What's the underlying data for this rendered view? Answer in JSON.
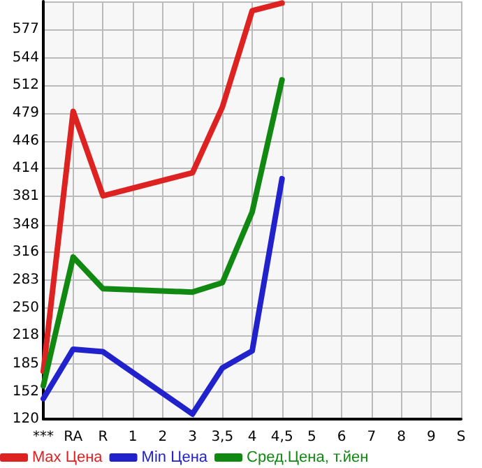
{
  "chart_data": {
    "type": "line",
    "categories": [
      "***",
      "RA",
      "R",
      "1",
      "2",
      "3",
      "3,5",
      "4",
      "4,5",
      "5",
      "6",
      "7",
      "8",
      "9",
      "S"
    ],
    "series": [
      {
        "name": "Max Цена",
        "color": "#dd2222",
        "values": [
          176,
          481,
          382,
          null,
          null,
          409,
          486,
          599,
          608,
          null,
          null,
          null,
          null,
          null,
          null
        ]
      },
      {
        "name": "Min Цена",
        "color": "#2222cc",
        "values": [
          144,
          202,
          199,
          null,
          null,
          126,
          180,
          200,
          402,
          null,
          null,
          null,
          null,
          null,
          null
        ]
      },
      {
        "name": "Сред.Цена, т.йен",
        "color": "#118811",
        "values": [
          159,
          310,
          273,
          null,
          null,
          269,
          280,
          363,
          518,
          null,
          null,
          null,
          null,
          null,
          null
        ]
      }
    ],
    "ylim": [
      120,
      610
    ],
    "yticks": [
      120,
      152,
      185,
      218,
      250,
      283,
      316,
      348,
      381,
      414,
      446,
      479,
      512,
      544,
      577,
      {
        "value": 610,
        "label": null
      }
    ],
    "grid": true,
    "legend": "bottom",
    "marker": "none",
    "line_style": "solid"
  }
}
